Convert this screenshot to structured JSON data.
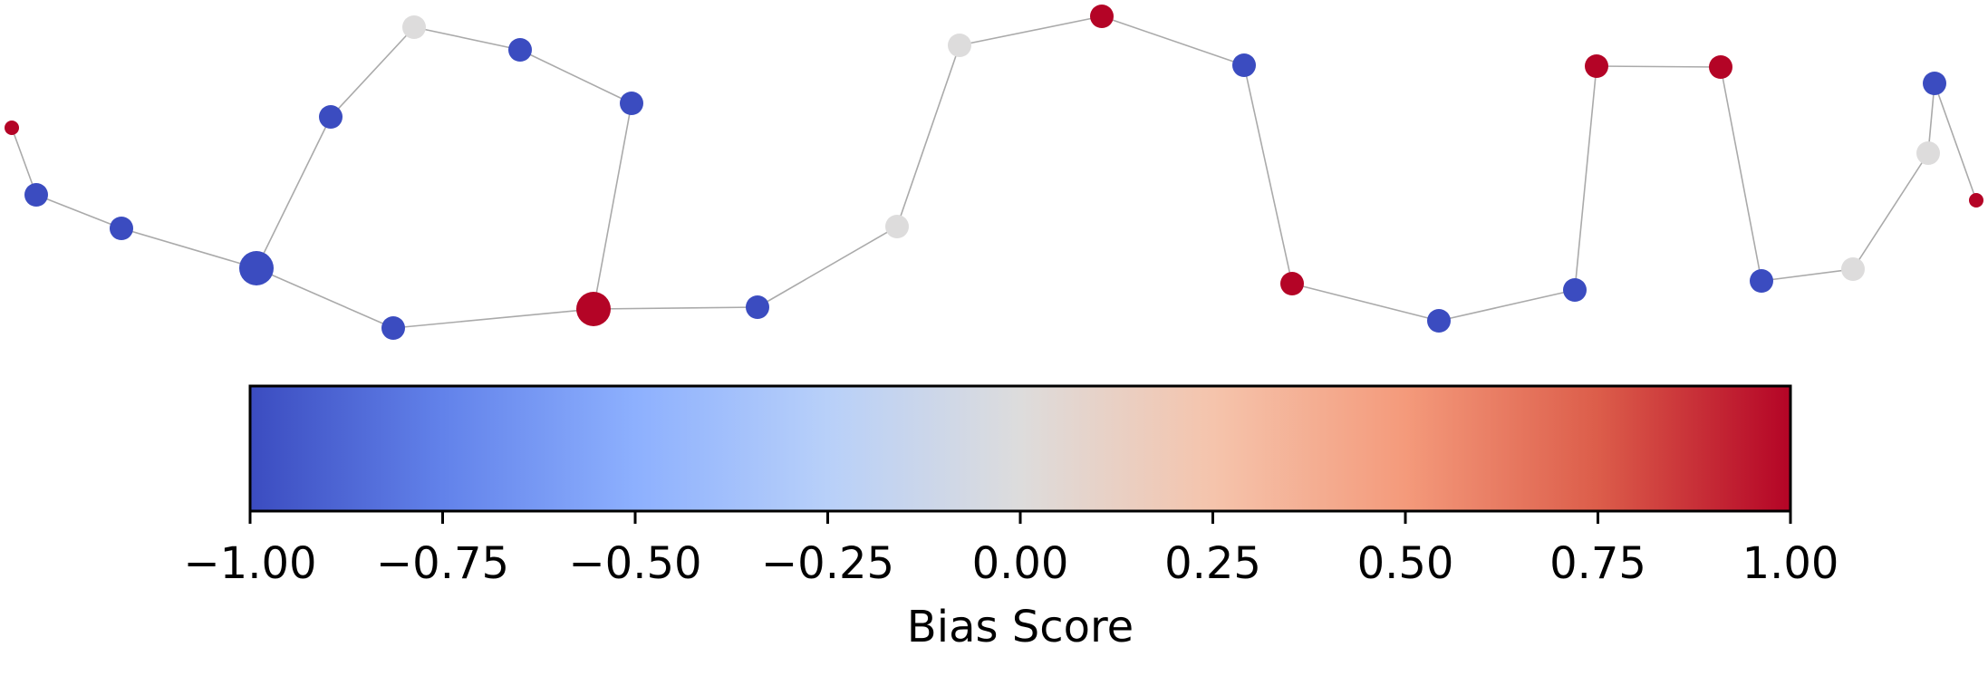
{
  "graph": {
    "nodes": [
      {
        "id": "n1",
        "score": 1.0
      },
      {
        "id": "n2",
        "score": -1.0
      },
      {
        "id": "n3",
        "score": -1.0
      },
      {
        "id": "n4",
        "score": -1.0
      },
      {
        "id": "n5",
        "score": -1.0
      },
      {
        "id": "n6",
        "score": 0.0
      },
      {
        "id": "n7",
        "score": -1.0
      },
      {
        "id": "n8",
        "score": -1.0
      },
      {
        "id": "n9",
        "score": -1.0
      },
      {
        "id": "n10",
        "score": 1.0
      },
      {
        "id": "n11",
        "score": -1.0
      },
      {
        "id": "n12",
        "score": 0.0
      },
      {
        "id": "n13",
        "score": 0.0
      },
      {
        "id": "n14",
        "score": 1.0
      },
      {
        "id": "n15",
        "score": -1.0
      },
      {
        "id": "n16",
        "score": 1.0
      },
      {
        "id": "n17",
        "score": -1.0
      },
      {
        "id": "n18",
        "score": -1.0
      },
      {
        "id": "n19",
        "score": 1.0
      },
      {
        "id": "n20",
        "score": 1.0
      },
      {
        "id": "n21",
        "score": -1.0
      },
      {
        "id": "n22",
        "score": 0.0
      },
      {
        "id": "n23",
        "score": 0.0
      },
      {
        "id": "n24",
        "score": -1.0
      },
      {
        "id": "n25",
        "score": 1.0
      }
    ],
    "edges": [
      [
        "n1",
        "n2"
      ],
      [
        "n2",
        "n3"
      ],
      [
        "n3",
        "n4"
      ],
      [
        "n4",
        "n5"
      ],
      [
        "n5",
        "n6"
      ],
      [
        "n6",
        "n7"
      ],
      [
        "n7",
        "n8"
      ],
      [
        "n8",
        "n10"
      ],
      [
        "n4",
        "n9"
      ],
      [
        "n9",
        "n10"
      ],
      [
        "n10",
        "n11"
      ],
      [
        "n11",
        "n12"
      ],
      [
        "n12",
        "n13"
      ],
      [
        "n13",
        "n14"
      ],
      [
        "n14",
        "n15"
      ],
      [
        "n15",
        "n16"
      ],
      [
        "n16",
        "n17"
      ],
      [
        "n17",
        "n18"
      ],
      [
        "n18",
        "n19"
      ],
      [
        "n19",
        "n20"
      ],
      [
        "n20",
        "n21"
      ],
      [
        "n21",
        "n22"
      ],
      [
        "n22",
        "n23"
      ],
      [
        "n23",
        "n24"
      ],
      [
        "n24",
        "n25"
      ]
    ]
  },
  "colorbar": {
    "label": "Bias Score",
    "min": -1.0,
    "max": 1.0,
    "tick_values": [
      -1.0,
      -0.75,
      -0.5,
      -0.25,
      0.0,
      0.25,
      0.5,
      0.75,
      1.0
    ],
    "tick_labels": [
      "−1.00",
      "−0.75",
      "−0.50",
      "−0.25",
      "0.00",
      "0.25",
      "0.50",
      "0.75",
      "1.00"
    ],
    "colormap": "coolwarm",
    "colormap_stops": [
      "#3b4cc0",
      "#6282ea",
      "#8db0fe",
      "#b8d0f9",
      "#dddcdc",
      "#f5c4ac",
      "#f49a7b",
      "#dc5d4a",
      "#b40426"
    ],
    "edge_color": "#aaaaaa"
  }
}
